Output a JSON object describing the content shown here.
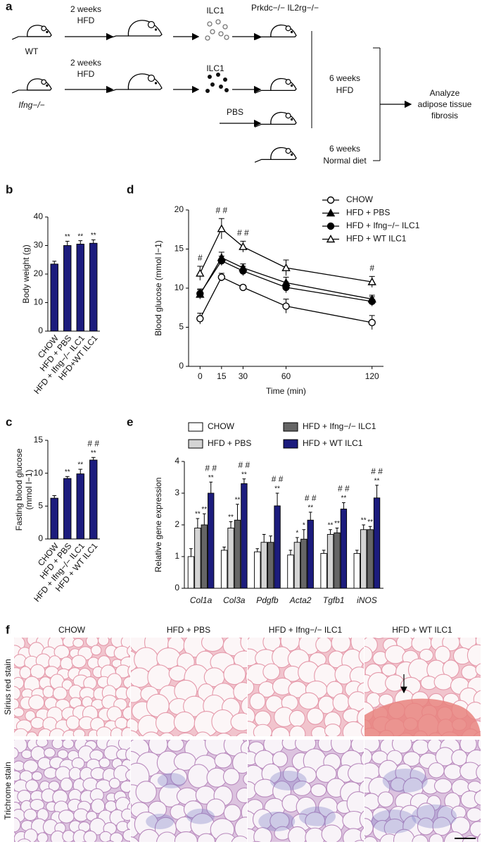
{
  "panel_labels": [
    "a",
    "b",
    "c",
    "d",
    "e",
    "f"
  ],
  "diagram": {
    "row1_treatment": [
      "2 weeks",
      "HFD"
    ],
    "row2_treatment": [
      "2 weeks",
      "HFD"
    ],
    "donor_wt": "WT",
    "donor_ko": "Ifng−/−",
    "cells_wt": "ILC1",
    "cells_ko": "ILC1",
    "recipient": "Prkdc−/− IL2rg−/−",
    "control": "PBS",
    "hfd_phase": [
      "6 weeks",
      "HFD"
    ],
    "normal_phase": [
      "6 weeks",
      "Normal diet"
    ],
    "readout": [
      "Analyze",
      "adipose tissue",
      "fibrosis"
    ]
  },
  "chart_data": [
    {
      "type": "bar",
      "ylabel": "Body weight (g)",
      "categories": [
        "CHOW",
        "HFD + PBS",
        "HFD + Ifng−/− ILC1",
        "HFD+WT ILC1"
      ],
      "values": [
        23.5,
        30,
        30.5,
        30.8
      ],
      "errors": [
        1,
        1.5,
        1.2,
        1.2
      ],
      "sig_labels": [
        null,
        "**",
        "**",
        "**"
      ],
      "color": "#1c1c7d",
      "ylim": [
        0,
        40
      ],
      "yticks": [
        0,
        10,
        20,
        30,
        40
      ]
    },
    {
      "type": "bar",
      "ylabel": [
        "Fasting blood glucose",
        "(mmol l−1)"
      ],
      "categories": [
        "CHOW",
        "HFD + PBS",
        "HFD + Ifng−/− ILC1",
        "HFD + WT ILC1"
      ],
      "values": [
        6.2,
        9.2,
        9.9,
        12.0
      ],
      "errors": [
        0.4,
        0.3,
        0.7,
        0.4
      ],
      "sig_labels": [
        null,
        "**",
        "**",
        "**"
      ],
      "hash_labels": [
        null,
        null,
        null,
        "# #"
      ],
      "color": "#1c1c7d",
      "ylim": [
        0,
        15
      ],
      "yticks": [
        0,
        5,
        10,
        15
      ]
    },
    {
      "type": "line",
      "ylabel": "Blood glucose (mmol l−1)",
      "xlabel": "Time (min)",
      "x": [
        0,
        15,
        30,
        60,
        120
      ],
      "xlim": [
        -8,
        128
      ],
      "xticks": [
        0,
        15,
        30,
        60,
        120
      ],
      "ylim": [
        0,
        20
      ],
      "yticks": [
        0,
        5,
        10,
        15,
        20
      ],
      "legend": "upper right",
      "hash_labels": [
        "#",
        "# #",
        "# #",
        null,
        "#"
      ],
      "series": [
        {
          "name": "CHOW",
          "color": "#000000",
          "marker": "circle-open",
          "values": [
            6.1,
            11.4,
            10.1,
            7.7,
            5.6
          ],
          "errors": [
            0.7,
            0.5,
            0.3,
            0.9,
            0.9
          ]
        },
        {
          "name": "HFD + PBS",
          "color": "#000000",
          "marker": "triangle-filled",
          "values": [
            9.2,
            13.9,
            12.6,
            10.7,
            8.6
          ],
          "errors": [
            0.6,
            0.7,
            0.5,
            0.7,
            0.5
          ]
        },
        {
          "name": "HFD + Ifng−/− ILC1",
          "color": "#000000",
          "marker": "circle-filled",
          "values": [
            9.3,
            13.5,
            12.2,
            10.1,
            8.3
          ],
          "errors": [
            0.6,
            0.6,
            0.6,
            0.7,
            0.6
          ]
        },
        {
          "name": "HFD + WT ILC1",
          "color": "#000000",
          "marker": "triangle-open",
          "values": [
            11.9,
            17.6,
            15.3,
            12.6,
            10.8
          ],
          "errors": [
            0.9,
            1.3,
            0.7,
            1.0,
            0.7
          ]
        }
      ]
    },
    {
      "type": "bar",
      "ylabel": "Relative gene expression",
      "categories": [
        "Col1a",
        "Col3a",
        "Pdgfb",
        "Acta2",
        "Tgfb1",
        "iNOS"
      ],
      "ylim": [
        0,
        4
      ],
      "yticks": [
        0,
        1,
        2,
        3,
        4
      ],
      "series": [
        {
          "name": "CHOW",
          "color": "#ffffff",
          "values": [
            1.0,
            1.2,
            1.15,
            1.05,
            1.1,
            1.1
          ],
          "errors": [
            0.25,
            0.1,
            0.1,
            0.15,
            0.1,
            0.1
          ]
        },
        {
          "name": "HFD + PBS",
          "color": "#d4d4d4",
          "values": [
            1.9,
            1.9,
            1.45,
            1.45,
            1.7,
            1.85
          ],
          "errors": [
            0.3,
            0.2,
            0.25,
            0.15,
            0.15,
            0.15
          ],
          "sig_labels": [
            "**",
            "**",
            null,
            "*",
            "**",
            "**"
          ]
        },
        {
          "name": "HFD + Ifng−/− ILC1",
          "color": "#666666",
          "values": [
            2.0,
            2.15,
            1.45,
            1.55,
            1.75,
            1.85
          ],
          "errors": [
            0.35,
            0.5,
            0.2,
            0.3,
            0.15,
            0.1
          ],
          "sig_labels": [
            "**",
            "**",
            null,
            "*",
            "**",
            "**"
          ]
        },
        {
          "name": "HFD + WT ILC1",
          "color": "#1c1c7d",
          "values": [
            3.0,
            3.3,
            2.6,
            2.15,
            2.5,
            2.85
          ],
          "errors": [
            0.35,
            0.15,
            0.4,
            0.25,
            0.2,
            0.4
          ],
          "sig_labels": [
            "**",
            "**",
            "**",
            "**",
            "**",
            "**"
          ],
          "hash_labels": [
            "# #",
            "# #",
            "# #",
            "# #",
            "# #",
            "# #"
          ]
        }
      ]
    }
  ],
  "histology": {
    "columns": [
      "CHOW",
      "HFD + PBS",
      "HFD + Ifng−/− ILC1",
      "HFD + WT ILC1"
    ],
    "rows": [
      "Sirius red stain",
      "Trichrome stain"
    ]
  }
}
